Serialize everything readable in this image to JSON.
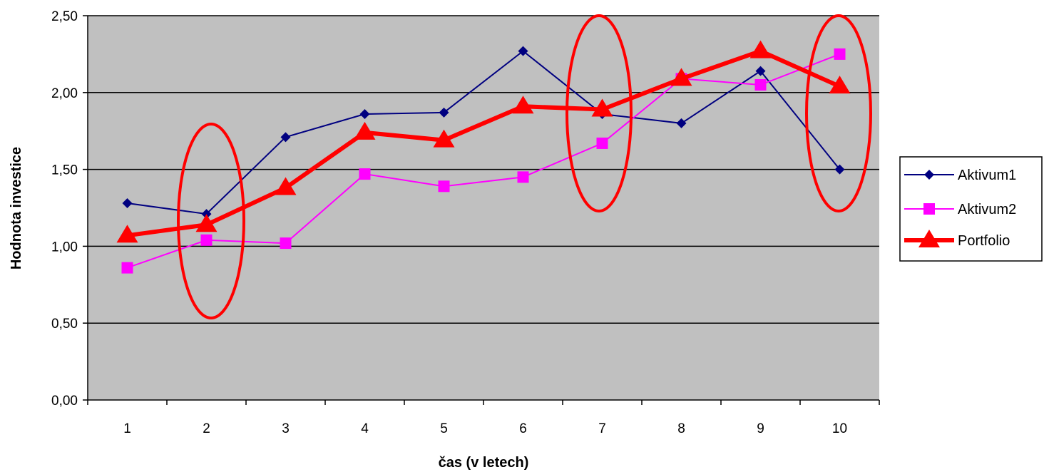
{
  "chart_data": {
    "type": "line",
    "title": "",
    "xlabel": "čas (v letech)",
    "ylabel": "Hodnota investice",
    "categories": [
      "1",
      "2",
      "3",
      "4",
      "5",
      "6",
      "7",
      "8",
      "9",
      "10"
    ],
    "ylim": [
      0,
      2.5
    ],
    "yticks": [
      "0,00",
      "0,50",
      "1,00",
      "1,50",
      "2,00",
      "2,50"
    ],
    "grid": true,
    "legend": "right",
    "series": [
      {
        "name": "Aktivum1",
        "color": "#000080",
        "marker": "diamond",
        "values": [
          1.28,
          1.21,
          1.71,
          1.86,
          1.87,
          2.27,
          1.86,
          1.8,
          2.14,
          1.5
        ]
      },
      {
        "name": "Aktivum2",
        "color": "#ff00ff",
        "marker": "square",
        "values": [
          0.86,
          1.04,
          1.02,
          1.47,
          1.39,
          1.45,
          1.67,
          2.09,
          2.05,
          2.25
        ]
      },
      {
        "name": "Portfolio",
        "color": "#ff0000",
        "marker": "triangle",
        "values": [
          1.07,
          1.14,
          1.38,
          1.74,
          1.69,
          1.91,
          1.89,
          2.09,
          2.27,
          2.04
        ]
      }
    ],
    "highlight_ellipses": [
      "2",
      "7",
      "10"
    ],
    "plot_background": "#c0c0c0",
    "highlight_color": "#ff0000"
  }
}
